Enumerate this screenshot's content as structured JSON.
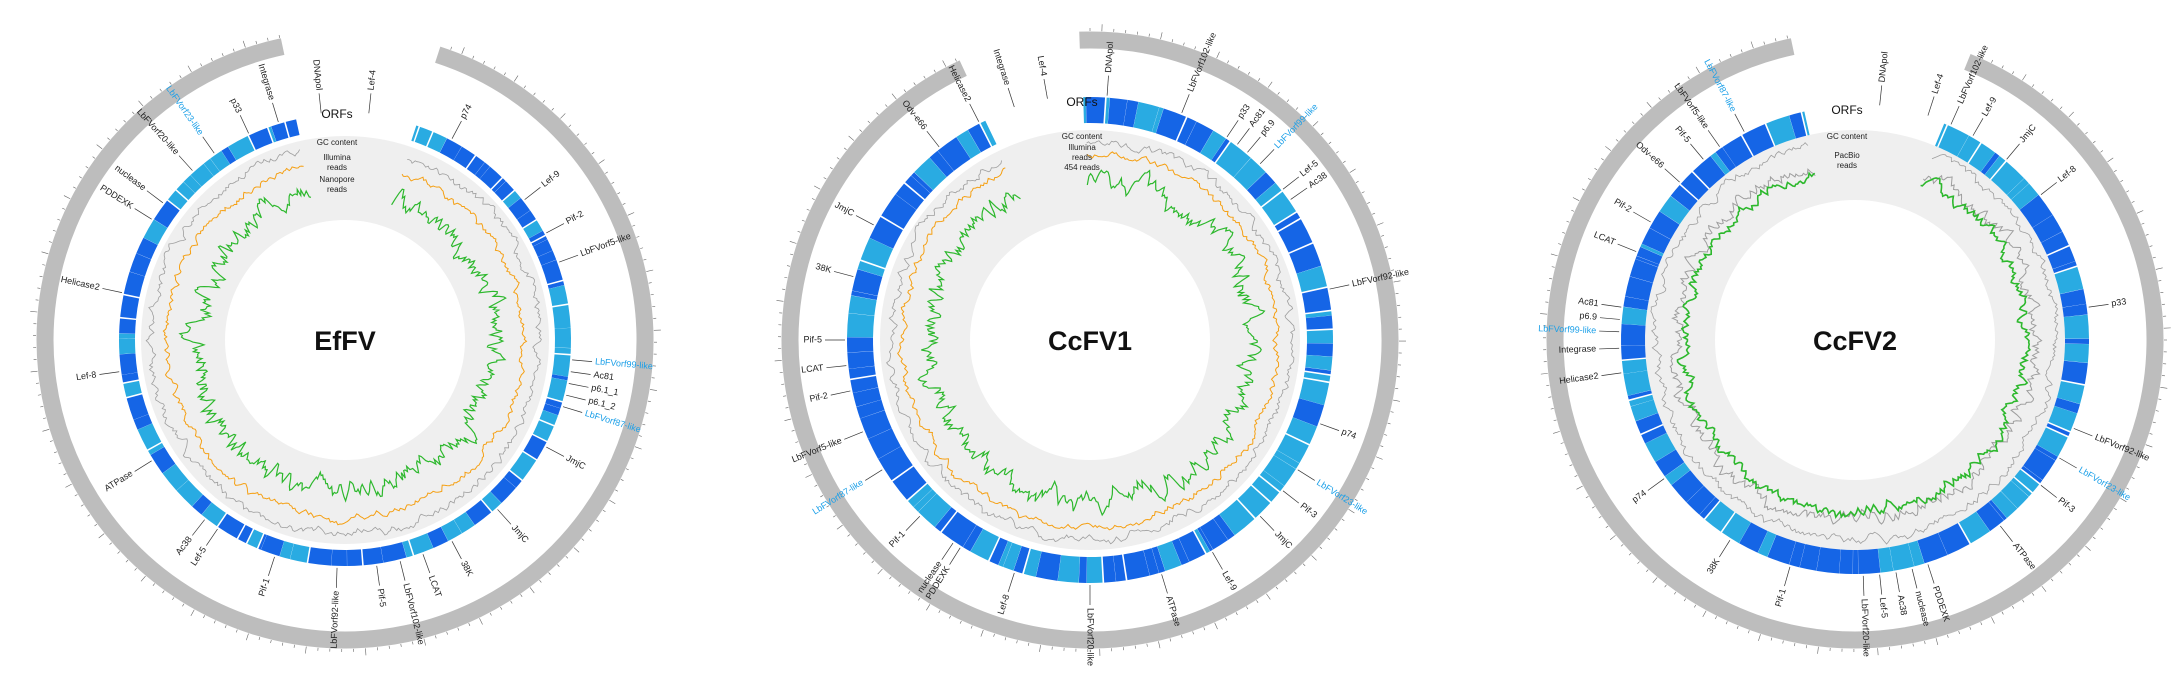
{
  "colors": {
    "backbone": "#bdbdbd",
    "orf_dark": "#1565e6",
    "orf_light": "#29abe2",
    "gc": "#9e9e9e",
    "illumina": "#f5a014",
    "longread": "#2db82d",
    "label_highlight": "#1a9fe8",
    "label_normal": "#222222",
    "track_bg": "#efefef"
  },
  "genomes": [
    {
      "title": "EfFV",
      "track_labels": [
        "ORFs",
        "GC content",
        "Illumina",
        "reads",
        "Nanopore",
        "reads"
      ],
      "genes": [
        {
          "name": "DNApol",
          "highlight": false
        },
        {
          "name": "Lef-4",
          "highlight": false
        },
        {
          "name": "p74",
          "highlight": false
        },
        {
          "name": "Lef-9",
          "highlight": false
        },
        {
          "name": "Pif-2",
          "highlight": false
        },
        {
          "name": "LbFVorf5-like",
          "highlight": false
        },
        {
          "name": "LbFVorf99-like",
          "highlight": true
        },
        {
          "name": "Ac81",
          "highlight": false
        },
        {
          "name": "p6.1_1",
          "highlight": false
        },
        {
          "name": "p6.1_2",
          "highlight": false
        },
        {
          "name": "LbFVorf87-like",
          "highlight": true
        },
        {
          "name": "JmjC",
          "highlight": false
        },
        {
          "name": "JmjC",
          "highlight": false
        },
        {
          "name": "38K",
          "highlight": false
        },
        {
          "name": "LCAT",
          "highlight": false
        },
        {
          "name": "LbFVorf102-like",
          "highlight": false
        },
        {
          "name": "Pif-5",
          "highlight": false
        },
        {
          "name": "LbFVorf92-like",
          "highlight": false
        },
        {
          "name": "Pif-1",
          "highlight": false
        },
        {
          "name": "Lef-5",
          "highlight": false
        },
        {
          "name": "Ac38",
          "highlight": false
        },
        {
          "name": "ATPase",
          "highlight": false
        },
        {
          "name": "Lef-8",
          "highlight": false
        },
        {
          "name": "Helicase2",
          "highlight": false
        },
        {
          "name": "PDDEXK",
          "highlight": false
        },
        {
          "name": "nuclease",
          "highlight": false
        },
        {
          "name": "LbFVorf20-like",
          "highlight": false
        },
        {
          "name": "LbFVorf23-like",
          "highlight": true
        },
        {
          "name": "p33",
          "highlight": false
        },
        {
          "name": "Integrase",
          "highlight": false
        }
      ]
    },
    {
      "title": "CcFV1",
      "track_labels": [
        "ORFs",
        "GC content",
        "Illumina",
        "reads",
        "454 reads",
        ""
      ],
      "genes": [
        {
          "name": "DNApol",
          "highlight": false
        },
        {
          "name": "LbFVorf102-like",
          "highlight": false
        },
        {
          "name": "p33",
          "highlight": false
        },
        {
          "name": "Ac81",
          "highlight": false
        },
        {
          "name": "p6.9",
          "highlight": false
        },
        {
          "name": "LbFVorf99-like",
          "highlight": true
        },
        {
          "name": "Lef-5",
          "highlight": false
        },
        {
          "name": "Ac38",
          "highlight": false
        },
        {
          "name": "LbFVorf92-like",
          "highlight": false
        },
        {
          "name": "p74",
          "highlight": false
        },
        {
          "name": "LbFVorf23-like",
          "highlight": true
        },
        {
          "name": "Pif-3",
          "highlight": false
        },
        {
          "name": "JmjC",
          "highlight": false
        },
        {
          "name": "Lef-9",
          "highlight": false
        },
        {
          "name": "ATPase",
          "highlight": false
        },
        {
          "name": "LbFVorf20-like",
          "highlight": false
        },
        {
          "name": "Lef-8",
          "highlight": false
        },
        {
          "name": "PDDEXK",
          "highlight": false
        },
        {
          "name": "nuclease",
          "highlight": false
        },
        {
          "name": "Pif-1",
          "highlight": false
        },
        {
          "name": "LbFVorf87-like",
          "highlight": true
        },
        {
          "name": "LbFVorf5-like",
          "highlight": false
        },
        {
          "name": "Pif-2",
          "highlight": false
        },
        {
          "name": "LCAT",
          "highlight": false
        },
        {
          "name": "Pif-5",
          "highlight": false
        },
        {
          "name": "38K",
          "highlight": false
        },
        {
          "name": "JmjC",
          "highlight": false
        },
        {
          "name": "Odv-e66",
          "highlight": false
        },
        {
          "name": "Helicase2",
          "highlight": false
        },
        {
          "name": "Integrase",
          "highlight": false
        },
        {
          "name": "Lef-4",
          "highlight": false
        }
      ]
    },
    {
      "title": "CcFV2",
      "track_labels": [
        "ORFs",
        "GC content",
        "PacBio",
        "reads",
        "",
        ""
      ],
      "genes": [
        {
          "name": "DNApol",
          "highlight": false
        },
        {
          "name": "Lef-4",
          "highlight": false
        },
        {
          "name": "LbFVorf102-like",
          "highlight": false
        },
        {
          "name": "Lef-9",
          "highlight": false
        },
        {
          "name": "JmjC",
          "highlight": false
        },
        {
          "name": "Lef-8",
          "highlight": false
        },
        {
          "name": "p33",
          "highlight": false
        },
        {
          "name": "LbFVorf92-like",
          "highlight": false
        },
        {
          "name": "LbFVorf23-like",
          "highlight": true
        },
        {
          "name": "Pif-3",
          "highlight": false
        },
        {
          "name": "ATPase",
          "highlight": false
        },
        {
          "name": "PDDEXK",
          "highlight": false
        },
        {
          "name": "nuclease",
          "highlight": false
        },
        {
          "name": "Ac38",
          "highlight": false
        },
        {
          "name": "Lef-5",
          "highlight": false
        },
        {
          "name": "LbFVorf20-like",
          "highlight": false
        },
        {
          "name": "Pif-1",
          "highlight": false
        },
        {
          "name": "38K",
          "highlight": false
        },
        {
          "name": "p74",
          "highlight": false
        },
        {
          "name": "Helicase2",
          "highlight": false
        },
        {
          "name": "Integrase",
          "highlight": false
        },
        {
          "name": "LbFVorf99-like",
          "highlight": true
        },
        {
          "name": "p6.9",
          "highlight": false
        },
        {
          "name": "Ac81",
          "highlight": false
        },
        {
          "name": "LCAT",
          "highlight": false
        },
        {
          "name": "Pif-2",
          "highlight": false
        },
        {
          "name": "Odv-e66",
          "highlight": false
        },
        {
          "name": "Pif-5",
          "highlight": false
        },
        {
          "name": "LbFVorf5-like",
          "highlight": false
        },
        {
          "name": "LbFVorf87-like",
          "highlight": true
        }
      ]
    }
  ]
}
